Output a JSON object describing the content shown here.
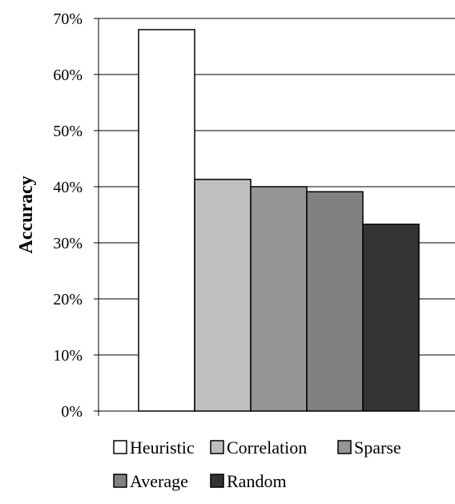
{
  "chart_data": {
    "type": "bar",
    "categories": [
      "Heuristic",
      "Correlation",
      "Sparse",
      "Average",
      "Random"
    ],
    "values": [
      68,
      41.3,
      40,
      39.1,
      33.3
    ],
    "value_format": "percent",
    "ylabel": "Accuracy",
    "xlabel": "",
    "ylim": [
      0,
      70
    ],
    "yticks": [
      0,
      10,
      20,
      30,
      40,
      50,
      60,
      70
    ],
    "ytick_labels": [
      "0%",
      "10%",
      "20%",
      "30%",
      "40%",
      "50%",
      "60%",
      "70%"
    ],
    "grid": true,
    "legend_placement": "bottom",
    "colors": [
      "#ffffff",
      "#bfbfbf",
      "#969696",
      "#808080",
      "#333333"
    ],
    "legend": [
      {
        "label": "Heuristic",
        "color": "#ffffff"
      },
      {
        "label": "Correlation",
        "color": "#bfbfbf"
      },
      {
        "label": "Sparse",
        "color": "#969696"
      },
      {
        "label": "Average",
        "color": "#808080"
      },
      {
        "label": "Random",
        "color": "#333333"
      }
    ]
  }
}
